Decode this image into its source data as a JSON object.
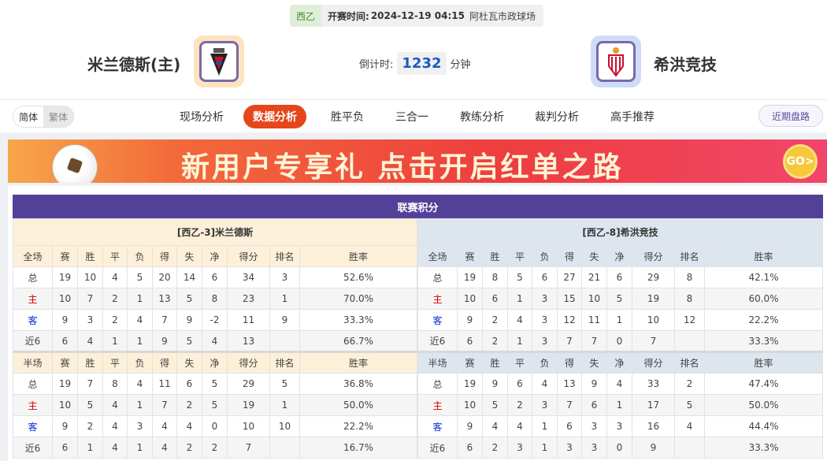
{
  "match": {
    "league": "西乙",
    "kickoff_label": "开赛时间:",
    "kickoff": "2024-12-19 04:15",
    "venue": "阿杜瓦市政球场"
  },
  "home_team": {
    "name": "米兰德斯(主)"
  },
  "away_team": {
    "name": "希洪竞技"
  },
  "countdown": {
    "label": "倒计时:",
    "value": "1232",
    "unit": "分钟"
  },
  "lang": {
    "simplified": "简体",
    "traditional": "繁体"
  },
  "tabs": [
    {
      "label": "现场分析"
    },
    {
      "label": "数据分析",
      "active": true
    },
    {
      "label": "胜平负"
    },
    {
      "label": "三合一"
    },
    {
      "label": "教练分析"
    },
    {
      "label": "裁判分析"
    },
    {
      "label": "高手推荐"
    }
  ],
  "recent_button": "近期盘路",
  "banner": {
    "text": "新用户专享礼  点击开启红单之路",
    "go": "GO>"
  },
  "colors": {
    "accent": "#e5461b",
    "title_bar": "#524099",
    "home_label": "#d40000",
    "away_label": "#0b2fd0"
  },
  "standings": {
    "title": "联赛积分",
    "columns_full": [
      "全场",
      "赛",
      "胜",
      "平",
      "负",
      "得",
      "失",
      "净",
      "得分",
      "排名",
      "胜率"
    ],
    "columns_half": [
      "半场",
      "赛",
      "胜",
      "平",
      "负",
      "得",
      "失",
      "净",
      "得分",
      "排名",
      "胜率"
    ],
    "home": {
      "title": "[西乙-3]米兰德斯",
      "full": [
        [
          "总",
          "19",
          "10",
          "4",
          "5",
          "20",
          "14",
          "6",
          "34",
          "3",
          "52.6%"
        ],
        [
          "主",
          "10",
          "7",
          "2",
          "1",
          "13",
          "5",
          "8",
          "23",
          "1",
          "70.0%"
        ],
        [
          "客",
          "9",
          "3",
          "2",
          "4",
          "7",
          "9",
          "-2",
          "11",
          "9",
          "33.3%"
        ],
        [
          "近6",
          "6",
          "4",
          "1",
          "1",
          "9",
          "5",
          "4",
          "13",
          "",
          "66.7%"
        ]
      ],
      "half": [
        [
          "总",
          "19",
          "7",
          "8",
          "4",
          "11",
          "6",
          "5",
          "29",
          "5",
          "36.8%"
        ],
        [
          "主",
          "10",
          "5",
          "4",
          "1",
          "7",
          "2",
          "5",
          "19",
          "1",
          "50.0%"
        ],
        [
          "客",
          "9",
          "2",
          "4",
          "3",
          "4",
          "4",
          "0",
          "10",
          "10",
          "22.2%"
        ],
        [
          "近6",
          "6",
          "1",
          "4",
          "1",
          "4",
          "2",
          "2",
          "7",
          "",
          "16.7%"
        ]
      ]
    },
    "away": {
      "title": "[西乙-8]希洪竞技",
      "full": [
        [
          "总",
          "19",
          "8",
          "5",
          "6",
          "27",
          "21",
          "6",
          "29",
          "8",
          "42.1%"
        ],
        [
          "主",
          "10",
          "6",
          "1",
          "3",
          "15",
          "10",
          "5",
          "19",
          "8",
          "60.0%"
        ],
        [
          "客",
          "9",
          "2",
          "4",
          "3",
          "12",
          "11",
          "1",
          "10",
          "12",
          "22.2%"
        ],
        [
          "近6",
          "6",
          "2",
          "1",
          "3",
          "7",
          "7",
          "0",
          "7",
          "",
          "33.3%"
        ]
      ],
      "half": [
        [
          "总",
          "19",
          "9",
          "6",
          "4",
          "13",
          "9",
          "4",
          "33",
          "2",
          "47.4%"
        ],
        [
          "主",
          "10",
          "5",
          "2",
          "3",
          "7",
          "6",
          "1",
          "17",
          "5",
          "50.0%"
        ],
        [
          "客",
          "9",
          "4",
          "4",
          "1",
          "6",
          "3",
          "3",
          "16",
          "4",
          "44.4%"
        ],
        [
          "近6",
          "6",
          "2",
          "3",
          "1",
          "3",
          "3",
          "0",
          "9",
          "",
          "33.3%"
        ]
      ]
    }
  }
}
